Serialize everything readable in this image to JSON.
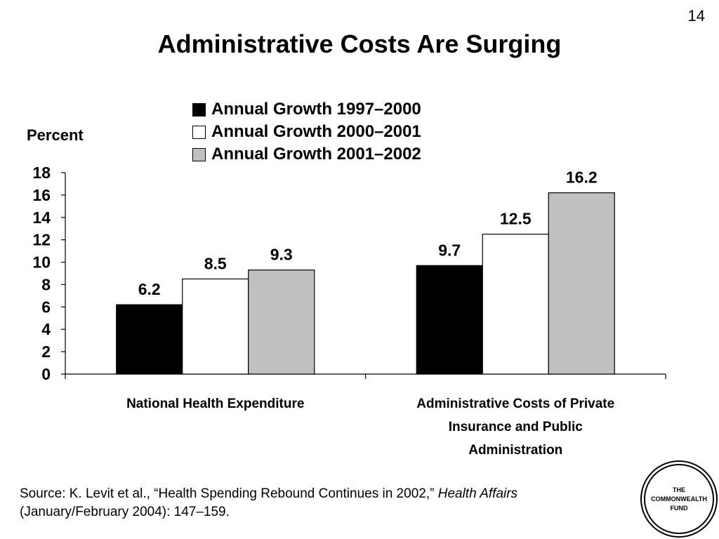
{
  "page_number": "14",
  "title": "Administrative Costs Are Surging",
  "chart_data": {
    "type": "bar",
    "ylabel": "Percent",
    "xlabel": "",
    "ylim": [
      0,
      18
    ],
    "yticks": [
      "0",
      "2",
      "4",
      "6",
      "8",
      "10",
      "12",
      "14",
      "16",
      "18"
    ],
    "categories": [
      [
        "National Health Expenditure"
      ],
      [
        "Administrative Costs of Private",
        "Insurance and Public",
        "Administration"
      ]
    ],
    "series": [
      {
        "name": "Annual Growth 1997–2000",
        "color": "#000000",
        "values": [
          6.2,
          9.7
        ],
        "labels": [
          "6.2",
          "9.7"
        ]
      },
      {
        "name": "Annual Growth 2000–2001",
        "color": "#ffffff",
        "values": [
          8.5,
          12.5
        ],
        "labels": [
          "8.5",
          "12.5"
        ]
      },
      {
        "name": "Annual Growth 2001–2002",
        "color": "#c0c0c0",
        "values": [
          9.3,
          16.2
        ],
        "labels": [
          "9.3",
          "16.2"
        ]
      }
    ],
    "grid": false,
    "legend_position": "top-center"
  },
  "source": {
    "text": "Source: K. Levit et al., “Health Spending Rebound Continues in 2002,”",
    "journal": "Health Affairs",
    "citation": "(January/February 2004): 147–159."
  },
  "logo": {
    "line1": "THE",
    "line2": "COMMONWEALTH",
    "line3": "FUND"
  }
}
